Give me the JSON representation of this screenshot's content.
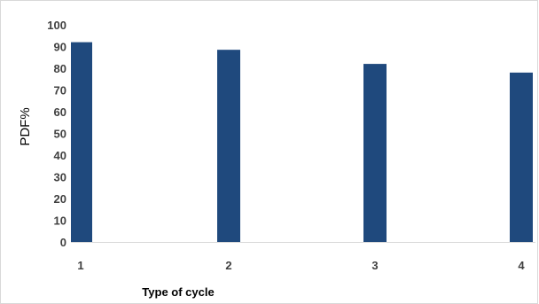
{
  "chart_data": {
    "type": "bar",
    "categories": [
      "1",
      "2",
      "3",
      "4"
    ],
    "values": [
      92,
      88.5,
      82,
      78
    ],
    "title": "",
    "xlabel": "Type of cycle",
    "ylabel": "PDF%",
    "ylim": [
      0,
      100
    ],
    "yticks": [
      "0",
      "10",
      "20",
      "30",
      "40",
      "50",
      "60",
      "70",
      "80",
      "90",
      "100"
    ],
    "grid": false,
    "bar_color": "#1f497d",
    "axis_color": "#d9d9d9"
  }
}
